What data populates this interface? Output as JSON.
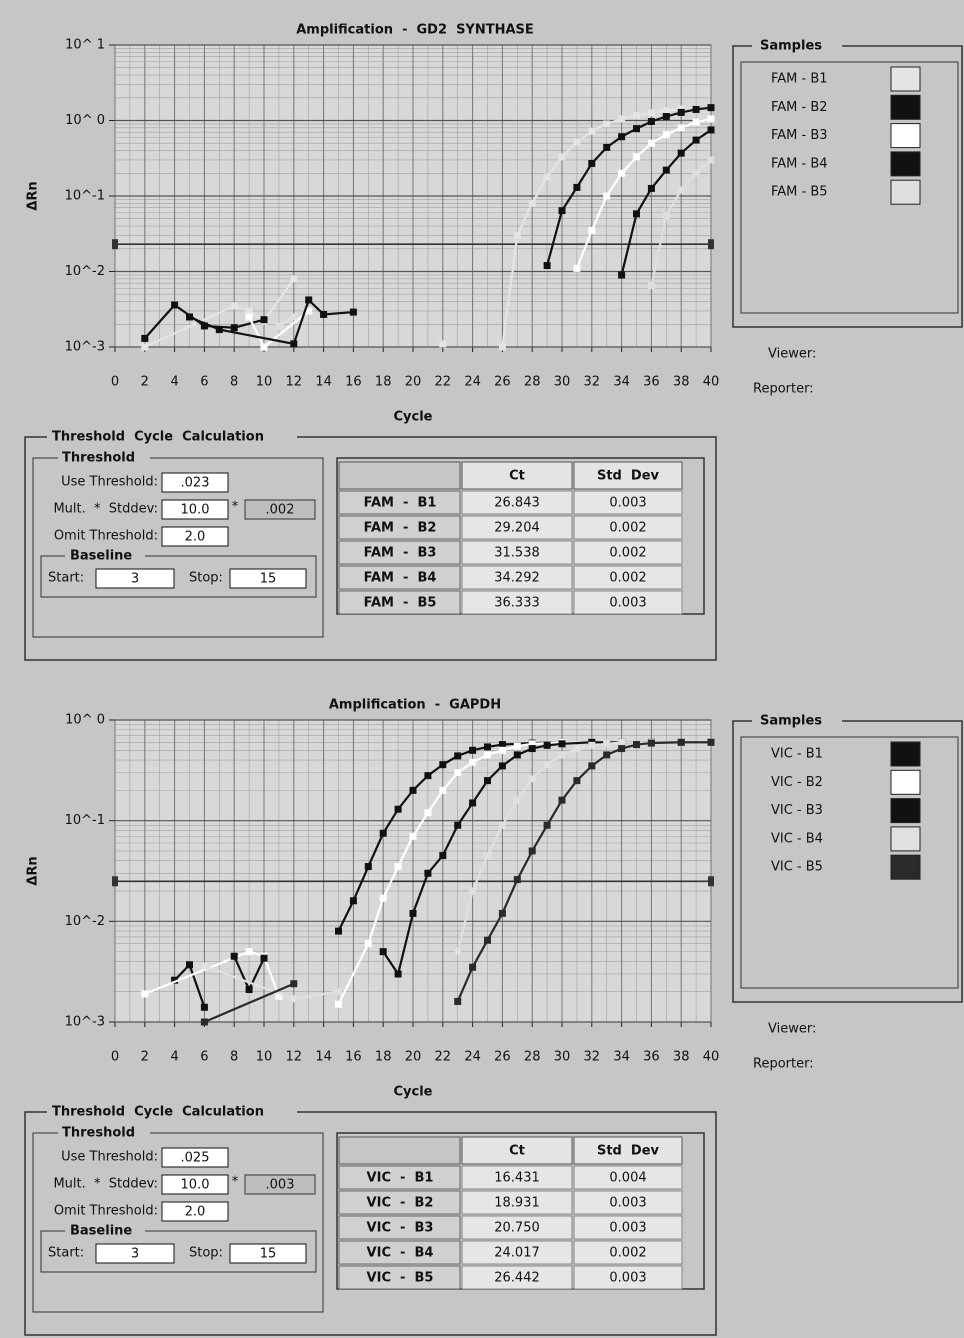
{
  "chart_data": [
    {
      "type": "line",
      "title": "Amplification  -  GD2  SYNTHASE",
      "x_label": "Cycle",
      "y_label": "ΔRn",
      "yscale": "log",
      "xlim": [
        0,
        40
      ],
      "ylim": [
        0.001,
        10
      ],
      "xticks": [
        0,
        2,
        4,
        6,
        8,
        10,
        12,
        14,
        16,
        18,
        20,
        22,
        24,
        26,
        28,
        30,
        32,
        34,
        36,
        38,
        40
      ],
      "yticks": [
        {
          "value": 10,
          "label": "10^ 1"
        },
        {
          "value": 1,
          "label": "10^ 0"
        },
        {
          "value": 0.1,
          "label": "10^-1"
        },
        {
          "value": 0.01,
          "label": "10^-2"
        },
        {
          "value": 0.001,
          "label": "10^-3"
        }
      ],
      "grid": true,
      "threshold": 0.023,
      "series": [
        {
          "name": "FAM - B1",
          "color": "#e4e4e4",
          "x": [
            2,
            8,
            9,
            10,
            12,
            17,
            22,
            24,
            26,
            27,
            28,
            29,
            30,
            31,
            32,
            33,
            34,
            35,
            36,
            37,
            38
          ],
          "values": [
            0.001,
            0.0035,
            0.003,
            0.0022,
            0.008,
            null,
            0.0011,
            null,
            0.001,
            0.03,
            0.08,
            0.18,
            0.33,
            0.52,
            0.72,
            0.9,
            1.05,
            1.17,
            1.27,
            1.35,
            1.42
          ]
        },
        {
          "name": "FAM - B2",
          "color": "#111111",
          "x": [
            2,
            4,
            6,
            8,
            10,
            20,
            29,
            30,
            31,
            32,
            33,
            34,
            35,
            36,
            37,
            38,
            39,
            40
          ],
          "values": [
            0.0013,
            0.0036,
            0.0019,
            0.0018,
            0.0023,
            null,
            0.012,
            0.064,
            0.13,
            0.27,
            0.44,
            0.61,
            0.78,
            0.97,
            1.13,
            1.28,
            1.4,
            1.48
          ]
        },
        {
          "name": "FAM - B3",
          "color": "#ffffff",
          "x": [
            9,
            10,
            13,
            20,
            31,
            32,
            33,
            34,
            35,
            36,
            37,
            38,
            39,
            40
          ],
          "values": [
            0.0025,
            0.001,
            0.003,
            null,
            0.011,
            0.035,
            0.1,
            0.2,
            0.33,
            0.5,
            0.65,
            0.8,
            0.95,
            1.05
          ]
        },
        {
          "name": "FAM - B4",
          "color": "#111111",
          "x": [
            5,
            7,
            12,
            13,
            14,
            16,
            25,
            34,
            35,
            36,
            37,
            38,
            39,
            40
          ],
          "values": [
            0.0025,
            0.0017,
            0.0011,
            0.0042,
            0.0027,
            0.0029,
            null,
            0.009,
            0.058,
            0.126,
            0.22,
            0.37,
            0.55,
            0.75
          ]
        },
        {
          "name": "FAM - B5",
          "color": "#dedede",
          "x": [
            11,
            12,
            26,
            36,
            37,
            38,
            39,
            40
          ],
          "values": [
            0.0019,
            0.0025,
            null,
            0.0065,
            0.055,
            0.12,
            0.2,
            0.3
          ]
        }
      ]
    },
    {
      "type": "line",
      "title": "Amplification  -  GAPDH",
      "x_label": "Cycle",
      "y_label": "ΔRn",
      "yscale": "log",
      "xlim": [
        0,
        40
      ],
      "ylim": [
        0.001,
        1
      ],
      "xticks": [
        0,
        2,
        4,
        6,
        8,
        10,
        12,
        14,
        16,
        18,
        20,
        22,
        24,
        26,
        28,
        30,
        32,
        34,
        36,
        38,
        40
      ],
      "yticks": [
        {
          "value": 1,
          "label": "10^ 0"
        },
        {
          "value": 0.1,
          "label": "10^-1"
        },
        {
          "value": 0.01,
          "label": "10^-2"
        },
        {
          "value": 0.001,
          "label": "10^-3"
        }
      ],
      "grid": true,
      "threshold": 0.025,
      "series": [
        {
          "name": "VIC - B1",
          "color": "#111111",
          "x": [
            4,
            5,
            6,
            10,
            15,
            16,
            17,
            18,
            19,
            20,
            21,
            22,
            23,
            24,
            25,
            26,
            28,
            30,
            32,
            34,
            36,
            38,
            40
          ],
          "values": [
            0.0026,
            0.0037,
            0.0014,
            null,
            0.008,
            0.016,
            0.035,
            0.075,
            0.13,
            0.2,
            0.28,
            0.36,
            0.44,
            0.5,
            0.54,
            0.57,
            0.59,
            0.6,
            0.6,
            0.6,
            0.6,
            0.6,
            0.6
          ]
        },
        {
          "name": "VIC - B2",
          "color": "#ffffff",
          "x": [
            2,
            9,
            10,
            11,
            14,
            15,
            17,
            18,
            19,
            20,
            21,
            22,
            23,
            24,
            25,
            26,
            27,
            28,
            30,
            32,
            34,
            36,
            38,
            40
          ],
          "values": [
            0.0019,
            0.005,
            0.0045,
            0.0018,
            null,
            0.0015,
            0.006,
            0.017,
            0.035,
            0.07,
            0.12,
            0.2,
            0.3,
            0.38,
            0.45,
            0.5,
            0.55,
            0.58,
            0.6,
            0.6,
            0.6,
            0.6,
            0.6,
            0.6
          ]
        },
        {
          "name": "VIC - B3",
          "color": "#111111",
          "x": [
            8,
            9,
            10,
            14,
            18,
            19,
            20,
            21,
            22,
            23,
            24,
            25,
            26,
            27,
            28,
            29,
            30,
            32,
            34,
            36,
            38,
            40
          ],
          "values": [
            0.0045,
            0.0021,
            0.0043,
            null,
            0.005,
            0.003,
            0.012,
            0.03,
            0.045,
            0.09,
            0.15,
            0.25,
            0.35,
            0.45,
            0.52,
            0.56,
            0.58,
            0.6,
            0.6,
            0.6,
            0.6,
            0.6
          ]
        },
        {
          "name": "VIC - B4",
          "color": "#e0e0e0",
          "x": [
            6,
            12,
            15,
            20,
            23,
            24,
            25,
            26,
            27,
            28,
            29,
            30,
            31,
            32,
            33,
            34,
            36,
            38,
            40
          ],
          "values": [
            0.0036,
            0.0017,
            0.002,
            null,
            0.005,
            0.02,
            0.045,
            0.09,
            0.16,
            0.26,
            0.36,
            0.45,
            0.52,
            0.56,
            0.58,
            0.6,
            0.6,
            0.6,
            0.6
          ]
        },
        {
          "name": "VIC - B5",
          "color": "#2a2a2a",
          "x": [
            6,
            12,
            18,
            23,
            24,
            25,
            26,
            27,
            28,
            29,
            30,
            31,
            32,
            33,
            34,
            35,
            36,
            38,
            40
          ],
          "values": [
            0.001,
            0.0024,
            null,
            0.0016,
            0.0035,
            0.0065,
            0.012,
            0.026,
            0.05,
            0.09,
            0.16,
            0.25,
            0.35,
            0.45,
            0.52,
            0.57,
            0.59,
            0.6,
            0.6
          ]
        }
      ]
    }
  ],
  "panels": [
    {
      "samples_title": "Samples",
      "viewer": "Viewer:",
      "reporter": "Reporter:",
      "calc_title": "Threshold  Cycle  Calculation",
      "threshold_title": "Threshold",
      "use_threshold": {
        "label": "Use Threshold:",
        "value": ".023"
      },
      "mult": {
        "label": "Mult.  *  Stddev:",
        "value": "10.0",
        "operator": "*",
        "result": ".002"
      },
      "omit": {
        "label": "Omit Threshold:",
        "value": "2.0"
      },
      "baseline_title": "Baseline",
      "start": {
        "label": "Start:",
        "value": "3"
      },
      "stop": {
        "label": "Stop:",
        "value": "15"
      },
      "table": {
        "header": [
          "Ct",
          "Std  Dev"
        ],
        "rows": [
          [
            "FAM  -  B1",
            "26.843",
            "0.003"
          ],
          [
            "FAM  -  B2",
            "29.204",
            "0.002"
          ],
          [
            "FAM  -  B3",
            "31.538",
            "0.002"
          ],
          [
            "FAM  -  B4",
            "34.292",
            "0.002"
          ],
          [
            "FAM  -  B5",
            "36.333",
            "0.003"
          ]
        ]
      }
    },
    {
      "samples_title": "Samples",
      "viewer": "Viewer:",
      "reporter": "Reporter:",
      "calc_title": "Threshold  Cycle  Calculation",
      "threshold_title": "Threshold",
      "use_threshold": {
        "label": "Use Threshold:",
        "value": ".025"
      },
      "mult": {
        "label": "Mult.  *  Stddev:",
        "value": "10.0",
        "operator": "*",
        "result": ".003"
      },
      "omit": {
        "label": "Omit Threshold:",
        "value": "2.0"
      },
      "baseline_title": "Baseline",
      "start": {
        "label": "Start:",
        "value": "3"
      },
      "stop": {
        "label": "Stop:",
        "value": "15"
      },
      "table": {
        "header": [
          "Ct",
          "Std  Dev"
        ],
        "rows": [
          [
            "VIC  -  B1",
            "16.431",
            "0.004"
          ],
          [
            "VIC  -  B2",
            "18.931",
            "0.003"
          ],
          [
            "VIC  -  B3",
            "20.750",
            "0.003"
          ],
          [
            "VIC  -  B4",
            "24.017",
            "0.002"
          ],
          [
            "VIC  -  B5",
            "26.442",
            "0.003"
          ]
        ]
      }
    }
  ]
}
